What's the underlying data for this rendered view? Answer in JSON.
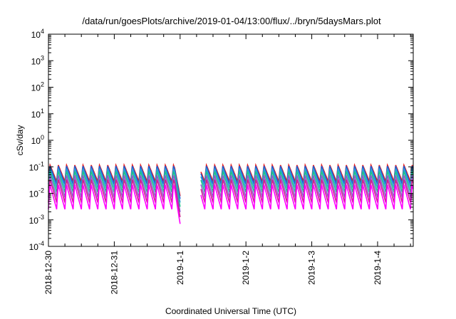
{
  "chart_data": {
    "type": "line",
    "title": "/data/run/goesPlots/archive/2019-01-04/13:00/flux/../bryn/5daysMars.plot",
    "xlabel": "Coordinated Universal Time (UTC)",
    "ylabel": "cSv/day",
    "y_scale": "log",
    "ylim": [
      0.0001,
      10000
    ],
    "y_ticks": [
      {
        "base": "10",
        "exp": "-4",
        "value": 0.0001
      },
      {
        "base": "10",
        "exp": "-3",
        "value": 0.001
      },
      {
        "base": "10",
        "exp": "-2",
        "value": 0.01
      },
      {
        "base": "10",
        "exp": "-1",
        "value": 0.1
      },
      {
        "base": "10",
        "exp": "0",
        "value": 1
      },
      {
        "base": "10",
        "exp": "1",
        "value": 10
      },
      {
        "base": "10",
        "exp": "2",
        "value": 100
      },
      {
        "base": "10",
        "exp": "3",
        "value": 1000
      },
      {
        "base": "10",
        "exp": "4",
        "value": 10000
      }
    ],
    "xlim": [
      "2018-12-30 00:00",
      "2019-01-04 13:00"
    ],
    "x_ticks": [
      "2018-12-30",
      "2018-12-31",
      "2019-1-1",
      "2019-1-2",
      "2019-1-3",
      "2019-1-4"
    ],
    "grid": false,
    "legend": "none",
    "gap": {
      "start": "2019-01-01 00:00",
      "end": "2019-01-01 07:30"
    },
    "series": [
      {
        "color": "#e41a1c",
        "peak": 0.12,
        "trough": 0.028
      },
      {
        "color": "#1f5fd6",
        "peak": 0.11,
        "trough": 0.022
      },
      {
        "color": "#2aa0d8",
        "peak": 0.09,
        "trough": 0.016
      },
      {
        "color": "#21c28a",
        "peak": 0.07,
        "trough": 0.011
      },
      {
        "color": "#8a5bd1",
        "peak": 0.05,
        "trough": 0.007
      },
      {
        "color": "#d02090",
        "peak": 0.035,
        "trough": 0.0045
      },
      {
        "color": "#ff00ff",
        "peak": 0.022,
        "trough": 0.0025
      }
    ]
  }
}
